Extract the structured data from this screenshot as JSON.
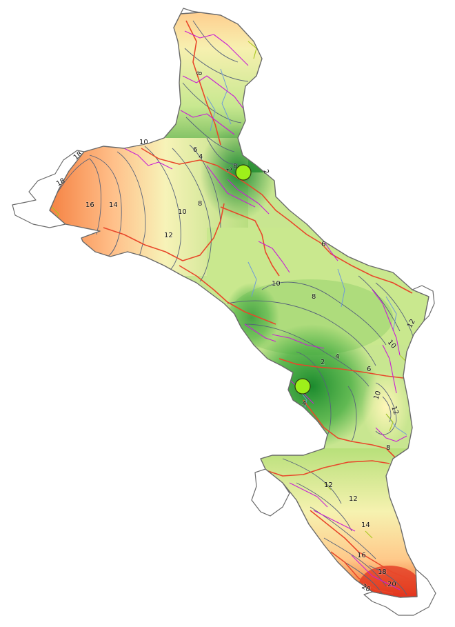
{
  "map": {
    "contour_labels": [
      "2",
      "2",
      "2",
      "4",
      "4",
      "4",
      "6",
      "6",
      "6",
      "8",
      "8",
      "8",
      "8",
      "8",
      "10",
      "10",
      "10",
      "10",
      "10",
      "12",
      "12",
      "12",
      "12",
      "12",
      "14",
      "14",
      "16",
      "16",
      "18",
      "18",
      "18",
      "20",
      "20"
    ],
    "markers": [
      {
        "name": "marker-north",
        "color": "#9ef01a"
      },
      {
        "name": "marker-south",
        "color": "#9ef01a"
      }
    ],
    "colors": {
      "low": "#2e9a3a",
      "mid": "#d7f09a",
      "high": "#ffc98a",
      "peak": "#e0201a",
      "roads_major": "#e8472a",
      "roads_minor": "#c81fd4",
      "streams": "#6f9ad8"
    }
  }
}
